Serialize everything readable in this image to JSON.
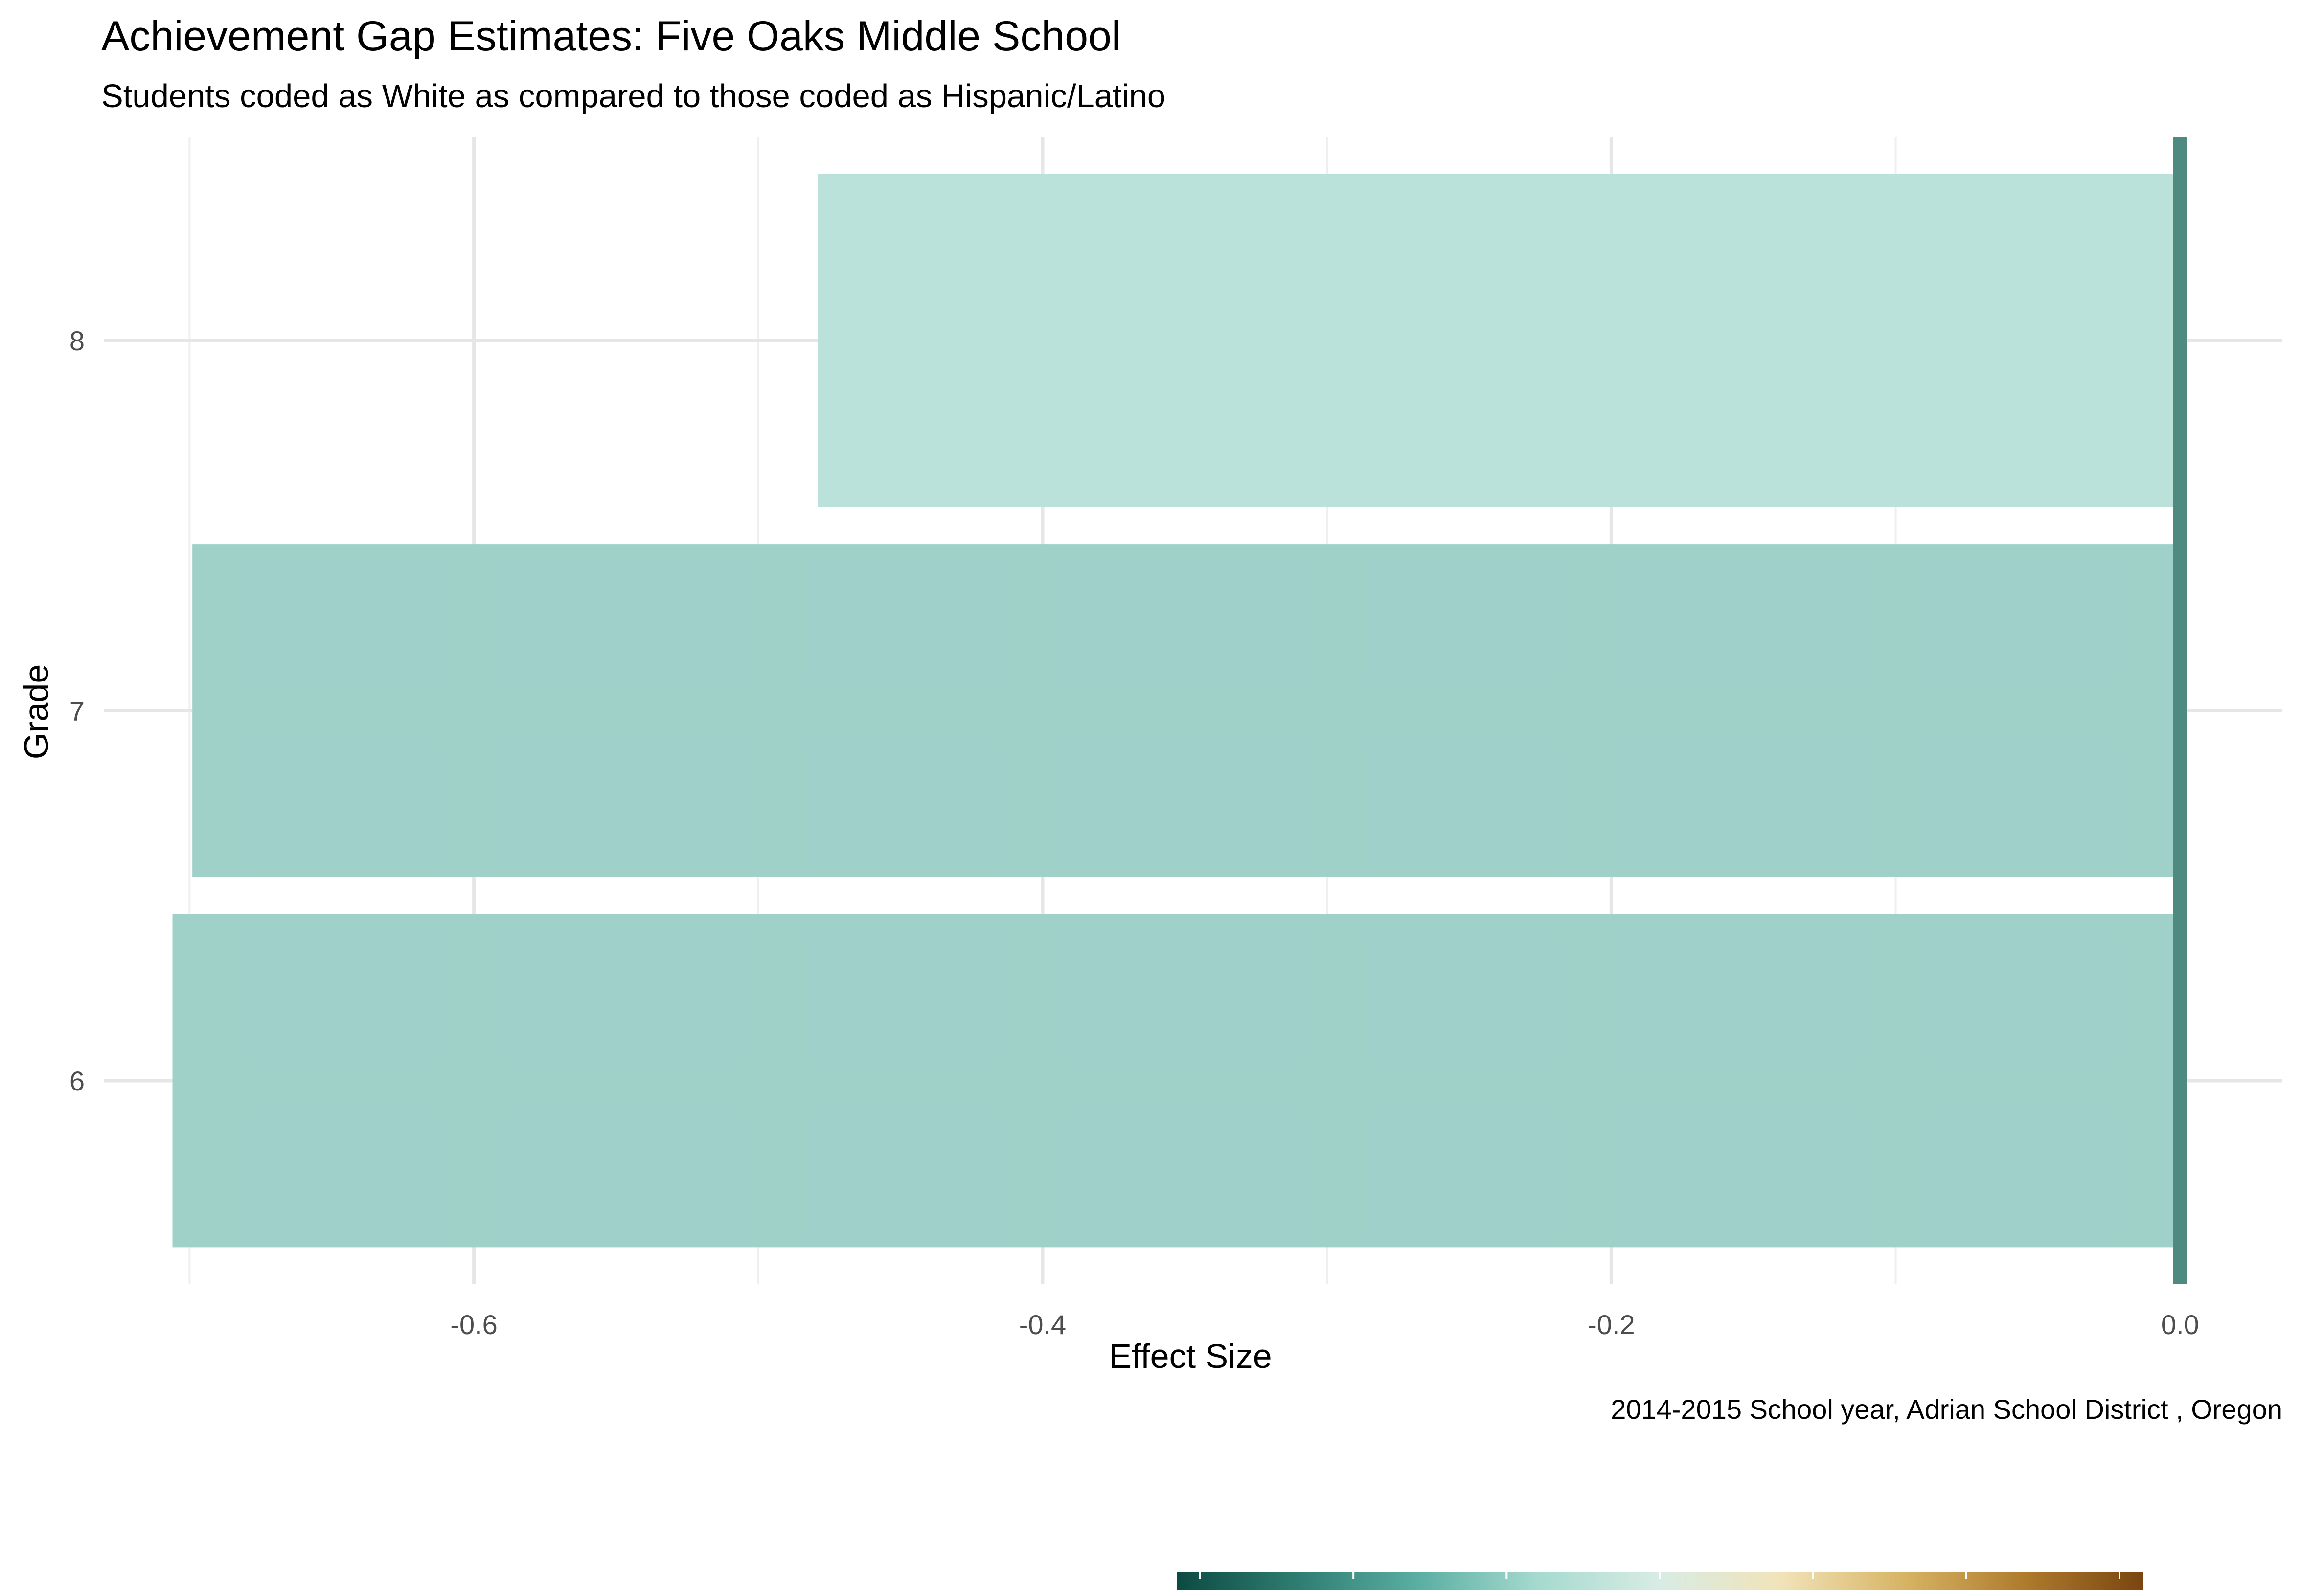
{
  "chart_data": {
    "type": "bar",
    "orientation": "horizontal",
    "title": "Achievement Gap Estimates: Five Oaks Middle School",
    "subtitle": "Students coded as White as compared to those coded as Hispanic/Latino",
    "caption": "2014-2015 School year,  Adrian School District , Oregon",
    "xlabel": "Effect Size",
    "ylabel": "Grade",
    "categories": [
      "6",
      "7",
      "8"
    ],
    "values": [
      -0.706,
      -0.699,
      -0.479
    ],
    "bar_colors": [
      "#9ccfc7",
      "#9ccfc7",
      "#b9e0da"
    ],
    "xlim": [
      -0.73,
      0.036
    ],
    "x_ticks": [
      -0.6,
      -0.4,
      -0.2,
      0.0
    ],
    "x_tick_labels": [
      "-0.6",
      "-0.4",
      "-0.2",
      "0.0"
    ],
    "reference_line": {
      "x": 0.0,
      "color": "#4e8a80"
    },
    "grid": true,
    "legend": {
      "type": "colorbar",
      "position": "bottom",
      "colors": [
        "#0c4a42",
        "#2f7d72",
        "#5aaea2",
        "#a6dacf",
        "#d8ece4",
        "#f1e3b9",
        "#d8b566",
        "#b07c2e",
        "#7a4510"
      ]
    }
  }
}
